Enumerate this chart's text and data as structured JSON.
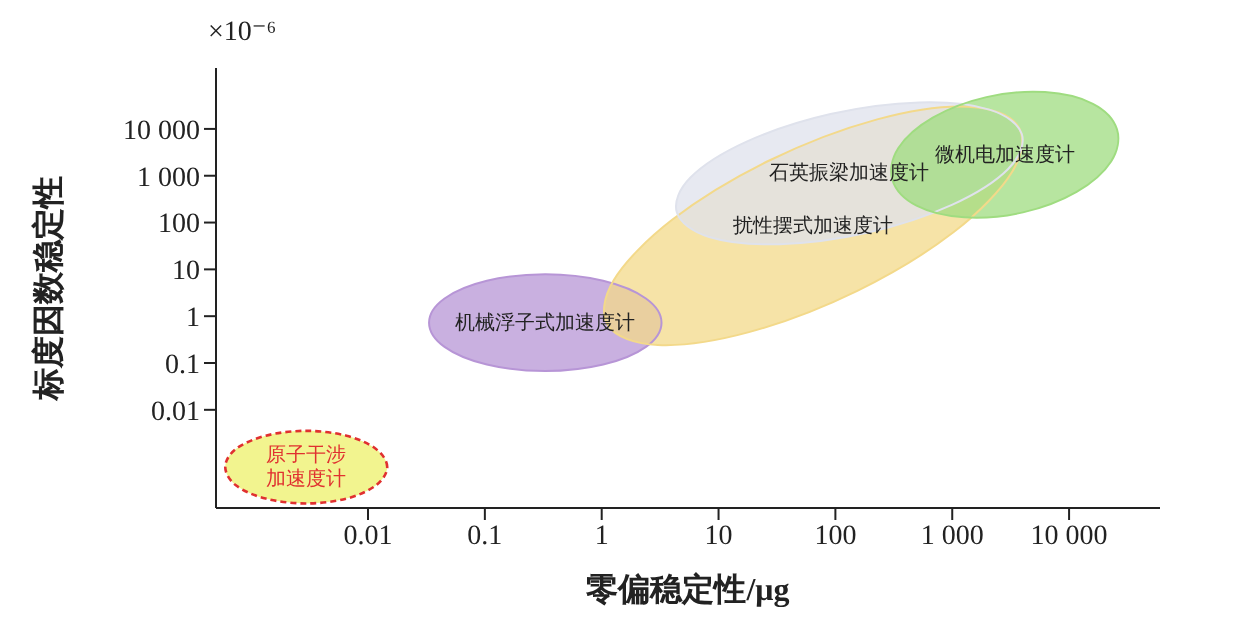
{
  "chart_data": {
    "type": "area",
    "xlabel": "零偏稳定性/μg",
    "ylabel": "标度因数稳定性",
    "annotations": [
      "×10⁻⁶"
    ],
    "log": "xy",
    "xlim": [
      0.0005,
      60000
    ],
    "ylim": [
      8e-05,
      200000
    ],
    "xticks": [
      0.01,
      0.1,
      1,
      10,
      100,
      {
        "value": 1000,
        "label": "1 000"
      },
      {
        "value": 10000,
        "label": "10 000"
      }
    ],
    "yticks": [
      0.01,
      0.1,
      1,
      10,
      100,
      {
        "value": 1000,
        "label": "1 000"
      },
      {
        "value": 10000,
        "label": "10 000"
      }
    ],
    "series": [
      {
        "name": "原子干涉加速度计",
        "color": "#eef06a",
        "line_style": "dashed",
        "x": [
          0.0146,
          0.0117,
          0.00655,
          0.00295,
          0.00133,
          0.00074,
          0.0006,
          0.00074,
          0.00133,
          0.00295,
          0.00655,
          0.0117
        ],
        "values": [
          0.0006,
          0.00146,
          0.0028,
          0.00356,
          0.0028,
          0.00146,
          0.0006,
          0.000244,
          0.000127,
          0.0001,
          0.000127,
          0.000244
        ]
      },
      {
        "name": "机械浮子式加速度计",
        "color": "#b795d6",
        "x": [
          3.25,
          2.39,
          1.03,
          0.329,
          0.104,
          0.0452,
          0.0333,
          0.0452,
          0.104,
          0.329,
          1.03,
          2.39
        ],
        "values": [
          0.728,
          2.39,
          5.71,
          7.87,
          5.71,
          2.39,
          0.728,
          0.221,
          0.0927,
          0.0673,
          0.0927,
          0.221
        ]
      },
      {
        "name": "扰性摆式加速度计",
        "color": "#f3d98a",
        "x": [
          3640,
          1370,
          228,
          26.9,
          4.03,
          1.27,
          1.14,
          3.03,
          18.2,
          154,
          1030,
          3270
        ],
        "values": [
          11700,
          29900,
          16000,
          2090,
          116,
          5.92,
          0.621,
          0.243,
          0.456,
          3.48,
          62.7,
          1230
        ]
      },
      {
        "name": "石英振梁加速度计",
        "color": "#dfe2ec",
        "x": [
          3940,
          2080,
          523,
          90.8,
          17.4,
          5.75,
          4.4,
          8.32,
          33.1,
          191,
          993,
          3010
        ],
        "values": [
          7760,
          25800,
          36800,
          20800,
          5350,
          914,
          164,
          49.3,
          34.5,
          61.1,
          238,
          1390
        ]
      },
      {
        "name": "微机电加速度计",
        "color": "#9fdc80",
        "x": [
          25700,
          16000,
          6220,
          1960,
          681,
          346,
          308,
          495,
          1270,
          4030,
          11600,
          22900
        ],
        "values": [
          9840,
          34400,
          61100,
          47800,
          17400,
          3900,
          800,
          229,
          129,
          165,
          452,
          2020
        ]
      }
    ]
  }
}
